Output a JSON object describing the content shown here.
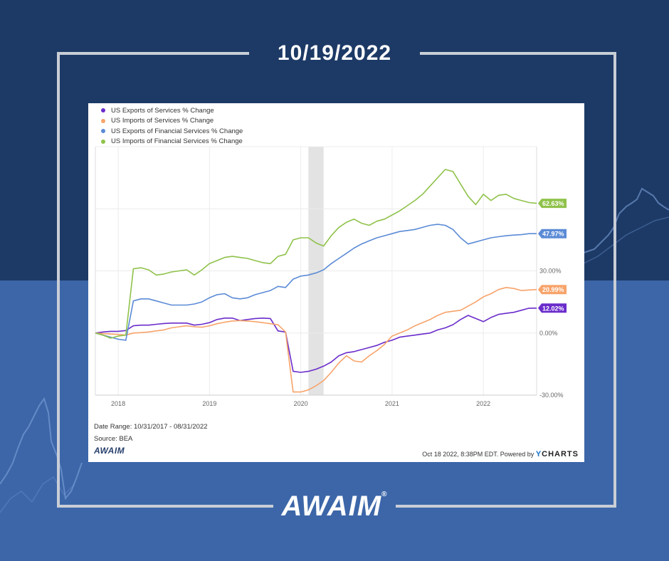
{
  "header": {
    "date": "10/19/2022"
  },
  "brand": {
    "logo_text": "AWAIM",
    "logo_mark": "®",
    "colors": {
      "dark_blue": "#1d3a66",
      "mid_blue": "#3c66a8",
      "frame_gray": "#c9ced6"
    }
  },
  "card": {
    "date_range": "Date Range: 10/31/2017 - 08/31/2022",
    "source": "Source: BEA",
    "small_logo": "AWAIM",
    "powered_prefix": "Oct 18 2022, 8:38PM EDT. Powered by ",
    "ycharts_y": "Y",
    "ycharts_rest": "CHARTS"
  },
  "chart_data": {
    "type": "line",
    "title": "",
    "xlabel": "",
    "ylabel": "",
    "x_ticks": [
      "2018",
      "2019",
      "2020",
      "2021",
      "2022"
    ],
    "y_ticks": [
      "-30.00%",
      "0.00%",
      "30.00%"
    ],
    "ylim": [
      -30,
      90
    ],
    "grid": true,
    "legend_position": "top-left",
    "recession_band": [
      "2020-02",
      "2020-04"
    ],
    "x": [
      "2017-10",
      "2017-11",
      "2017-12",
      "2018-01",
      "2018-02",
      "2018-03",
      "2018-04",
      "2018-05",
      "2018-06",
      "2018-07",
      "2018-08",
      "2018-09",
      "2018-10",
      "2018-11",
      "2018-12",
      "2019-01",
      "2019-02",
      "2019-03",
      "2019-04",
      "2019-05",
      "2019-06",
      "2019-07",
      "2019-08",
      "2019-09",
      "2019-10",
      "2019-11",
      "2019-12",
      "2020-01",
      "2020-02",
      "2020-03",
      "2020-04",
      "2020-05",
      "2020-06",
      "2020-07",
      "2020-08",
      "2020-09",
      "2020-10",
      "2020-11",
      "2020-12",
      "2021-01",
      "2021-02",
      "2021-03",
      "2021-04",
      "2021-05",
      "2021-06",
      "2021-07",
      "2021-08",
      "2021-09",
      "2021-10",
      "2021-11",
      "2021-12",
      "2022-01",
      "2022-02",
      "2022-03",
      "2022-04",
      "2022-05",
      "2022-06",
      "2022-07",
      "2022-08"
    ],
    "series": [
      {
        "name": "US Exports of Services % Change",
        "color": "#6a2ccb",
        "last_label": "12.02%",
        "values": [
          0,
          0.5,
          0.8,
          0.8,
          1.2,
          3.5,
          3.8,
          3.8,
          4.2,
          4.6,
          4.8,
          4.8,
          4.8,
          3.8,
          4.2,
          5.0,
          6.5,
          7.2,
          7.2,
          6.0,
          6.5,
          7.0,
          7.2,
          7.0,
          1.0,
          0.5,
          -18.5,
          -19.0,
          -18.5,
          -17.5,
          -16.0,
          -14.0,
          -11.0,
          -9.5,
          -9.0,
          -8.0,
          -7.0,
          -6.0,
          -4.5,
          -3.5,
          -2.0,
          -1.5,
          -1.0,
          -0.5,
          0,
          1.5,
          2.5,
          4.0,
          6.5,
          8.5,
          7.0,
          5.5,
          7.5,
          9.0,
          9.5,
          10.0,
          11.0,
          12.0,
          12.02
        ]
      },
      {
        "name": "US Imports of Services % Change",
        "color": "#f7a36a",
        "last_label": "20.99%",
        "values": [
          0,
          -0.3,
          -0.5,
          -0.7,
          -1.0,
          0,
          0.2,
          0.5,
          1.0,
          1.5,
          2.5,
          3.0,
          3.5,
          3.0,
          2.8,
          3.5,
          4.5,
          5.2,
          5.8,
          6.0,
          5.8,
          5.5,
          5.0,
          4.5,
          4.0,
          0.5,
          -28.5,
          -28.5,
          -27.5,
          -25.5,
          -23.0,
          -19.0,
          -14.5,
          -11.0,
          -13.5,
          -14.0,
          -11.0,
          -8.5,
          -5.5,
          -1.5,
          0,
          1.5,
          3.5,
          5.0,
          6.5,
          8.5,
          10.0,
          10.5,
          11.0,
          13.0,
          15.0,
          17.5,
          19.0,
          21.0,
          22.0,
          21.5,
          20.5,
          20.8,
          20.99
        ]
      },
      {
        "name": "US Exports of Financial Services % Change",
        "color": "#5b8bd6",
        "last_label": "47.97%",
        "values": [
          0,
          -1.0,
          -2.0,
          -3.0,
          -3.5,
          15.5,
          16.5,
          16.5,
          15.5,
          14.5,
          13.5,
          13.5,
          13.5,
          14.0,
          15.0,
          17.0,
          18.5,
          19.0,
          17.0,
          16.5,
          17.0,
          18.5,
          19.5,
          20.5,
          22.5,
          22.0,
          26.0,
          27.5,
          28.0,
          29.0,
          30.5,
          33.5,
          36.0,
          38.5,
          41.0,
          43.0,
          44.5,
          46.0,
          47.0,
          48.0,
          49.0,
          49.5,
          50.0,
          51.0,
          52.0,
          52.5,
          52.0,
          50.0,
          46.0,
          43.0,
          44.0,
          45.0,
          46.0,
          46.5,
          47.0,
          47.3,
          47.5,
          47.97,
          47.97
        ]
      },
      {
        "name": "US Imports of Financial Services % Change",
        "color": "#8fc24a",
        "last_label": "62.63%",
        "values": [
          0,
          -1.0,
          -2.5,
          -1.5,
          -1.0,
          31.0,
          31.5,
          30.5,
          28.0,
          28.5,
          29.5,
          30.0,
          30.5,
          28.0,
          30.5,
          33.5,
          35.0,
          36.5,
          37.0,
          36.5,
          36.0,
          35.0,
          34.0,
          33.5,
          37.0,
          38.0,
          45.0,
          46.0,
          46.0,
          43.5,
          42.0,
          47.0,
          51.0,
          53.5,
          55.0,
          53.0,
          52.0,
          54.0,
          55.0,
          57.0,
          59.0,
          61.5,
          64.0,
          67.0,
          71.0,
          75.0,
          79.0,
          78.0,
          72.0,
          66.0,
          62.0,
          67.0,
          64.0,
          66.5,
          67.0,
          65.0,
          64.0,
          63.0,
          62.63
        ]
      }
    ]
  }
}
